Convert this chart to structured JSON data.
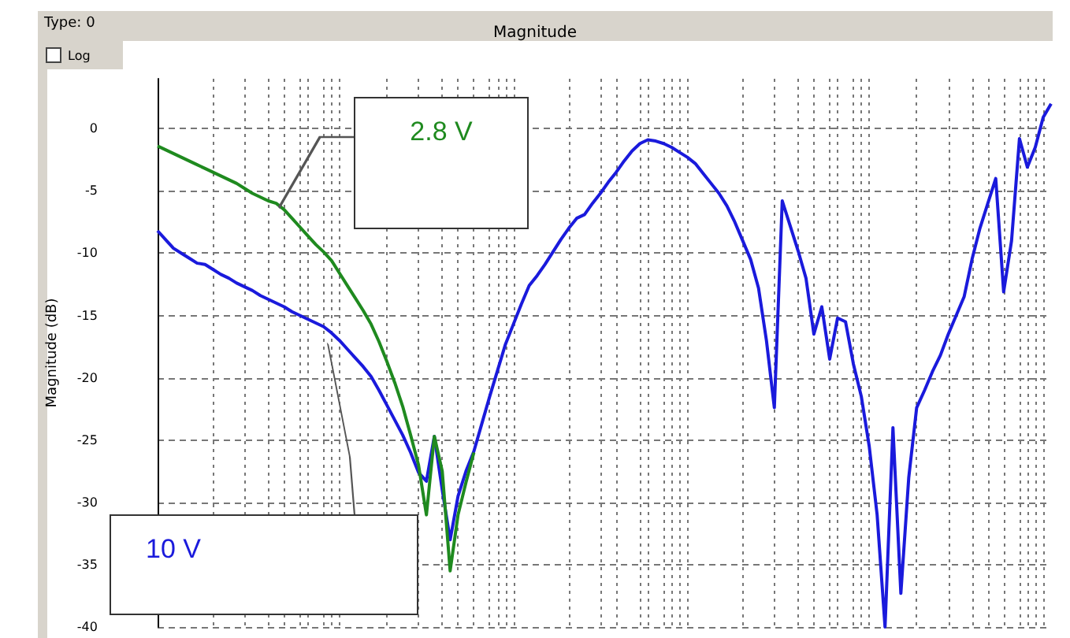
{
  "chart_data": {
    "type": "line",
    "title": "Magnitude",
    "ylabel": "Magnitude (dB)",
    "annotations": [
      "Type: 0",
      "Log"
    ],
    "categories": [
      null,
      null,
      null,
      null,
      null,
      null,
      null,
      null,
      null,
      null,
      null,
      null,
      null,
      null,
      null,
      null,
      null,
      null,
      null,
      null,
      null,
      null,
      null,
      null,
      null,
      null,
      null,
      null,
      null,
      null,
      null,
      null,
      null,
      null,
      null,
      null,
      null,
      null,
      null,
      null,
      null,
      null,
      null,
      null,
      null,
      null,
      null,
      null,
      null,
      null,
      null,
      null,
      null,
      null,
      null,
      null,
      null,
      null,
      null,
      null,
      null,
      null,
      null,
      null,
      null,
      null,
      null,
      null,
      null,
      null,
      null,
      null,
      null,
      null,
      null,
      null,
      null,
      null,
      null,
      null,
      null,
      null,
      null,
      null,
      null,
      null,
      null,
      null,
      null,
      null,
      null,
      null,
      null,
      null,
      null,
      null,
      null,
      null,
      null,
      null,
      null,
      null,
      null,
      null,
      null,
      null,
      null,
      null,
      null,
      null,
      null,
      null,
      null,
      null
    ],
    "series": [
      {
        "name": "10 V",
        "color": "#1a1adc",
        "values": [
          -8.2,
          -8.9,
          -9.6,
          -10.0,
          -10.4,
          -10.8,
          -10.9,
          -11.3,
          -11.7,
          -12.0,
          -12.4,
          -12.7,
          -13.0,
          -13.4,
          -13.7,
          -14.0,
          -14.3,
          -14.7,
          -15.0,
          -15.3,
          -15.6,
          -15.9,
          -16.4,
          -17.0,
          -17.7,
          -18.4,
          -19.1,
          -19.9,
          -21.0,
          -22.2,
          -23.4,
          -24.6,
          -26.0,
          -27.6,
          -28.3,
          -24.7,
          -29.0,
          -33.0,
          -29.5,
          -27.5,
          -25.9,
          -23.7,
          -21.5,
          -19.4,
          -17.3,
          -15.7,
          -14.1,
          -12.6,
          -11.8,
          -10.9,
          -9.9,
          -8.9,
          -8.0,
          -7.2,
          -6.9,
          -6.0,
          -5.2,
          -4.3,
          -3.5,
          -2.6,
          -1.8,
          -1.2,
          -0.9,
          -1.0,
          -1.2,
          -1.5,
          -1.9,
          -2.3,
          -2.8,
          -3.6,
          -4.4,
          -5.2,
          -6.2,
          -7.5,
          -9.0,
          -10.5,
          -12.8,
          -17.0,
          -22.4,
          -5.8,
          -7.8,
          -9.8,
          -12.0,
          -16.5,
          -14.3,
          -18.5,
          -15.2,
          -15.5,
          -18.9,
          -21.5,
          -25.5,
          -31.0,
          -40.0,
          -24.0,
          -37.3,
          -28.0,
          -22.4,
          -21.0,
          -19.5,
          -18.2,
          -16.5,
          -15.0,
          -13.5,
          -10.5,
          -8.0,
          -6.0,
          -4.0,
          -13.1,
          -9.0,
          -0.8,
          -3.1,
          -1.5,
          0.9,
          2.0
        ]
      },
      {
        "name": "2.8 V",
        "color": "#1f8a1f",
        "values": [
          -1.4,
          -1.7,
          -2.0,
          -2.3,
          -2.6,
          -2.9,
          -3.2,
          -3.5,
          -3.8,
          -4.1,
          -4.4,
          -4.8,
          -5.2,
          -5.5,
          -5.8,
          -6.0,
          -6.5,
          -7.2,
          -7.9,
          -8.6,
          -9.3,
          -9.9,
          -10.6,
          -11.6,
          -12.6,
          -13.6,
          -14.6,
          -15.7,
          -17.1,
          -18.7,
          -20.4,
          -22.3,
          -24.6,
          -27.0,
          -31.0,
          -24.7,
          -27.5,
          -35.5,
          -31.0,
          -28.4,
          -26.0,
          null,
          null,
          null,
          null,
          null,
          null,
          null,
          null,
          null,
          null,
          null,
          null,
          null,
          null,
          null,
          null,
          null,
          null,
          null,
          null,
          null,
          null,
          null,
          null,
          null,
          null,
          null,
          null,
          null,
          null,
          null,
          null,
          null,
          null,
          null,
          null,
          null,
          null,
          null,
          null,
          null,
          null,
          null,
          null,
          null,
          null,
          null,
          null,
          null,
          null,
          null,
          null,
          null,
          null,
          null,
          null,
          null,
          null,
          null,
          null,
          null,
          null,
          null,
          null,
          null,
          null,
          null,
          null,
          null,
          null,
          null,
          null,
          null
        ]
      }
    ],
    "ylim": [
      -40,
      4
    ],
    "yticks": [
      0,
      -5,
      -10,
      -15,
      -20,
      -25,
      -30,
      -35,
      -40
    ],
    "grid": true,
    "legend": false,
    "line_style": "solid"
  }
}
